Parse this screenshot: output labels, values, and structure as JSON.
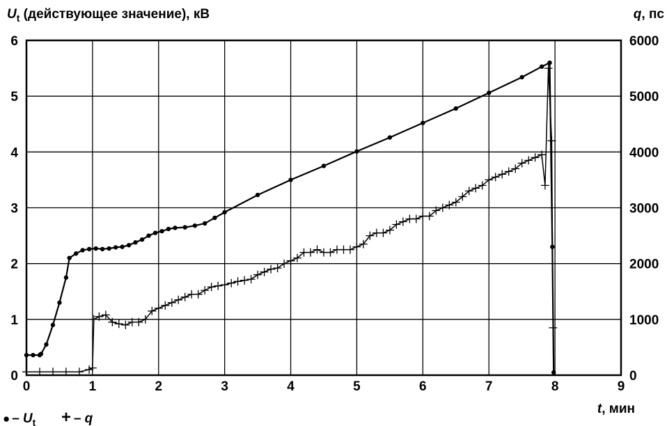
{
  "chart_data": {
    "type": "line",
    "left_axis_title": "U",
    "left_axis_title_sub": "t",
    "left_axis_title_rest": " (действующее значение), кВ",
    "right_axis_title": "q",
    "right_axis_title_rest": ", пс",
    "x_axis_title": "t",
    "x_axis_title_rest": ", мин",
    "xlim": [
      0,
      9
    ],
    "ylim_left": [
      0,
      6
    ],
    "ylim_right": [
      0,
      6000
    ],
    "x_ticks": [
      "0",
      "1",
      "2",
      "3",
      "4",
      "5",
      "6",
      "7",
      "8",
      "9"
    ],
    "y_left_ticks": [
      "0",
      "1",
      "2",
      "3",
      "4",
      "5",
      "6"
    ],
    "y_right_ticks": [
      "0",
      "1000",
      "2000",
      "3000",
      "4000",
      "5000",
      "6000"
    ],
    "grid": true,
    "legend": {
      "placement": "bottom-left",
      "entries": [
        {
          "marker": "●",
          "dash": "–",
          "name": "U",
          "sub": "t"
        },
        {
          "marker": "+",
          "dash": "–",
          "name": "q",
          "sub": ""
        }
      ]
    },
    "series": [
      {
        "name": "U",
        "axis": "left",
        "marker": "dot",
        "points": [
          [
            0.0,
            0.36
          ],
          [
            0.1,
            0.36
          ],
          [
            0.2,
            0.36
          ],
          [
            0.22,
            0.38
          ],
          [
            0.3,
            0.55
          ],
          [
            0.4,
            0.9
          ],
          [
            0.5,
            1.3
          ],
          [
            0.6,
            1.75
          ],
          [
            0.65,
            2.1
          ],
          [
            0.75,
            2.18
          ],
          [
            0.85,
            2.24
          ],
          [
            0.95,
            2.26
          ],
          [
            1.05,
            2.27
          ],
          [
            1.15,
            2.26
          ],
          [
            1.25,
            2.27
          ],
          [
            1.35,
            2.29
          ],
          [
            1.45,
            2.3
          ],
          [
            1.55,
            2.33
          ],
          [
            1.65,
            2.38
          ],
          [
            1.75,
            2.43
          ],
          [
            1.85,
            2.5
          ],
          [
            1.95,
            2.55
          ],
          [
            2.05,
            2.58
          ],
          [
            2.15,
            2.62
          ],
          [
            2.25,
            2.64
          ],
          [
            2.4,
            2.65
          ],
          [
            2.55,
            2.68
          ],
          [
            2.7,
            2.72
          ],
          [
            2.85,
            2.82
          ],
          [
            3.0,
            2.92
          ],
          [
            3.5,
            3.23
          ],
          [
            4.0,
            3.5
          ],
          [
            4.5,
            3.75
          ],
          [
            5.0,
            4.01
          ],
          [
            5.5,
            4.26
          ],
          [
            6.0,
            4.52
          ],
          [
            6.5,
            4.78
          ],
          [
            7.0,
            5.06
          ],
          [
            7.5,
            5.34
          ],
          [
            7.8,
            5.53
          ],
          [
            7.92,
            5.6
          ],
          [
            7.96,
            2.3
          ],
          [
            7.98,
            0.05
          ]
        ]
      },
      {
        "name": "q",
        "axis": "right",
        "marker": "plus",
        "points": [
          [
            0.0,
            60
          ],
          [
            0.2,
            60
          ],
          [
            0.4,
            60
          ],
          [
            0.6,
            60
          ],
          [
            0.8,
            60
          ],
          [
            0.95,
            100
          ],
          [
            1.0,
            130
          ],
          [
            1.02,
            1000
          ],
          [
            1.1,
            1050
          ],
          [
            1.2,
            1080
          ],
          [
            1.3,
            950
          ],
          [
            1.4,
            920
          ],
          [
            1.5,
            900
          ],
          [
            1.6,
            950
          ],
          [
            1.7,
            950
          ],
          [
            1.8,
            1000
          ],
          [
            1.9,
            1150
          ],
          [
            2.0,
            1200
          ],
          [
            2.1,
            1250
          ],
          [
            2.2,
            1300
          ],
          [
            2.3,
            1350
          ],
          [
            2.4,
            1400
          ],
          [
            2.5,
            1450
          ],
          [
            2.6,
            1450
          ],
          [
            2.7,
            1520
          ],
          [
            2.8,
            1580
          ],
          [
            2.9,
            1600
          ],
          [
            3.0,
            1620
          ],
          [
            3.1,
            1650
          ],
          [
            3.2,
            1680
          ],
          [
            3.3,
            1700
          ],
          [
            3.4,
            1720
          ],
          [
            3.5,
            1800
          ],
          [
            3.6,
            1850
          ],
          [
            3.7,
            1900
          ],
          [
            3.8,
            1920
          ],
          [
            3.9,
            2000
          ],
          [
            4.0,
            2050
          ],
          [
            4.1,
            2100
          ],
          [
            4.2,
            2200
          ],
          [
            4.3,
            2200
          ],
          [
            4.4,
            2250
          ],
          [
            4.5,
            2200
          ],
          [
            4.6,
            2200
          ],
          [
            4.7,
            2250
          ],
          [
            4.8,
            2250
          ],
          [
            4.9,
            2250
          ],
          [
            5.0,
            2300
          ],
          [
            5.1,
            2350
          ],
          [
            5.2,
            2500
          ],
          [
            5.3,
            2550
          ],
          [
            5.4,
            2550
          ],
          [
            5.5,
            2600
          ],
          [
            5.6,
            2700
          ],
          [
            5.7,
            2750
          ],
          [
            5.8,
            2800
          ],
          [
            5.9,
            2800
          ],
          [
            6.0,
            2850
          ],
          [
            6.1,
            2850
          ],
          [
            6.2,
            2950
          ],
          [
            6.3,
            3000
          ],
          [
            6.4,
            3050
          ],
          [
            6.5,
            3100
          ],
          [
            6.6,
            3200
          ],
          [
            6.7,
            3300
          ],
          [
            6.8,
            3350
          ],
          [
            6.9,
            3400
          ],
          [
            7.0,
            3500
          ],
          [
            7.1,
            3550
          ],
          [
            7.2,
            3600
          ],
          [
            7.3,
            3650
          ],
          [
            7.4,
            3700
          ],
          [
            7.5,
            3800
          ],
          [
            7.6,
            3850
          ],
          [
            7.7,
            3900
          ],
          [
            7.8,
            3950
          ],
          [
            7.85,
            3400
          ],
          [
            7.9,
            5500
          ],
          [
            7.95,
            4200
          ],
          [
            7.97,
            850
          ]
        ]
      }
    ]
  }
}
